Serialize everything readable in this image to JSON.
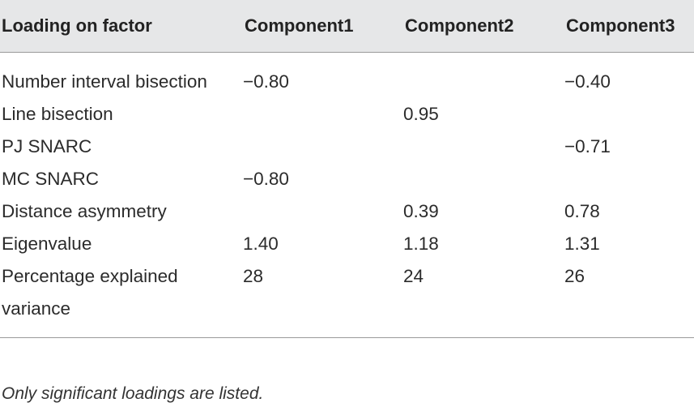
{
  "table": {
    "header": [
      "Loading on factor",
      "Component1",
      "Component2",
      "Component3"
    ],
    "rows": [
      [
        "Number interval bisection",
        "−0.80",
        null,
        "−0.40"
      ],
      [
        "Line bisection",
        null,
        "0.95",
        null
      ],
      [
        "PJ SNARC",
        null,
        null,
        "−0.71"
      ],
      [
        "MC SNARC",
        "−0.80",
        null,
        null
      ],
      [
        "Distance asymmetry",
        null,
        "0.39",
        "0.78"
      ],
      [
        "Eigenvalue",
        "1.40",
        "1.18",
        "1.31"
      ],
      [
        "Percentage explained variance",
        "28",
        "24",
        "26"
      ]
    ]
  },
  "footnote": "Only significant loadings are listed."
}
